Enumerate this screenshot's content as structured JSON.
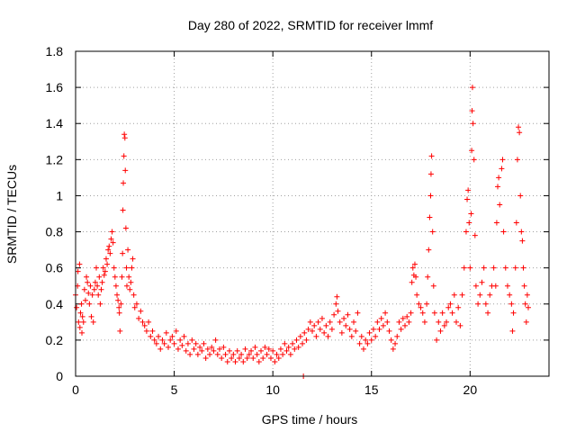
{
  "chart_data": {
    "type": "scatter",
    "title": "Day 280 of 2022, SRMTID for receiver lmmf",
    "xlabel": "GPS time / hours",
    "ylabel": "SRMTID / TECUs",
    "xlim": [
      0,
      24
    ],
    "ylim": [
      0,
      1.8
    ],
    "xticks": [
      0,
      5,
      10,
      15,
      20
    ],
    "xtick_labels": [
      "0",
      "5",
      "10",
      "15",
      "20"
    ],
    "yticks": [
      0,
      0.2,
      0.4,
      0.6,
      0.8,
      1.0,
      1.2,
      1.4,
      1.6,
      1.8
    ],
    "ytick_labels": [
      "0",
      "0.2",
      "0.4",
      "0.6",
      "0.8",
      "1",
      "1.2",
      "1.4",
      "1.6",
      "1.8"
    ],
    "grid": true,
    "marker": "+",
    "color": "#ff0000",
    "series": [
      {
        "name": "SRMTID",
        "points": [
          [
            0.0,
            0.45
          ],
          [
            0.05,
            0.38
          ],
          [
            0.1,
            0.5
          ],
          [
            0.12,
            0.58
          ],
          [
            0.15,
            0.3
          ],
          [
            0.2,
            0.62
          ],
          [
            0.22,
            0.27
          ],
          [
            0.25,
            0.35
          ],
          [
            0.3,
            0.4
          ],
          [
            0.32,
            0.24
          ],
          [
            0.35,
            0.33
          ],
          [
            0.4,
            0.3
          ],
          [
            0.45,
            0.48
          ],
          [
            0.5,
            0.42
          ],
          [
            0.55,
            0.55
          ],
          [
            0.6,
            0.52
          ],
          [
            0.65,
            0.46
          ],
          [
            0.7,
            0.4
          ],
          [
            0.75,
            0.5
          ],
          [
            0.8,
            0.33
          ],
          [
            0.85,
            0.45
          ],
          [
            0.9,
            0.3
          ],
          [
            0.95,
            0.48
          ],
          [
            1.0,
            0.52
          ],
          [
            1.05,
            0.6
          ],
          [
            1.1,
            0.5
          ],
          [
            1.15,
            0.45
          ],
          [
            1.2,
            0.55
          ],
          [
            1.25,
            0.4
          ],
          [
            1.3,
            0.48
          ],
          [
            1.35,
            0.52
          ],
          [
            1.4,
            0.6
          ],
          [
            1.45,
            0.56
          ],
          [
            1.5,
            0.58
          ],
          [
            1.55,
            0.65
          ],
          [
            1.6,
            0.62
          ],
          [
            1.65,
            0.7
          ],
          [
            1.7,
            0.72
          ],
          [
            1.75,
            0.68
          ],
          [
            1.8,
            0.76
          ],
          [
            1.85,
            0.8
          ],
          [
            1.9,
            0.74
          ],
          [
            1.95,
            0.6
          ],
          [
            2.0,
            0.55
          ],
          [
            2.05,
            0.5
          ],
          [
            2.1,
            0.45
          ],
          [
            2.15,
            0.42
          ],
          [
            2.2,
            0.38
          ],
          [
            2.22,
            0.35
          ],
          [
            2.25,
            0.25
          ],
          [
            2.3,
            0.4
          ],
          [
            2.35,
            0.55
          ],
          [
            2.38,
            0.68
          ],
          [
            2.4,
            0.92
          ],
          [
            2.42,
            1.07
          ],
          [
            2.45,
            1.22
          ],
          [
            2.47,
            1.34
          ],
          [
            2.5,
            1.32
          ],
          [
            2.52,
            1.14
          ],
          [
            2.55,
            0.82
          ],
          [
            2.58,
            0.6
          ],
          [
            2.6,
            0.5
          ],
          [
            2.65,
            0.7
          ],
          [
            2.7,
            0.55
          ],
          [
            2.75,
            0.48
          ],
          [
            2.8,
            0.52
          ],
          [
            2.85,
            0.6
          ],
          [
            2.9,
            0.65
          ],
          [
            2.95,
            0.45
          ],
          [
            3.0,
            0.38
          ],
          [
            3.1,
            0.4
          ],
          [
            3.2,
            0.32
          ],
          [
            3.3,
            0.36
          ],
          [
            3.4,
            0.3
          ],
          [
            3.5,
            0.28
          ],
          [
            3.6,
            0.25
          ],
          [
            3.7,
            0.3
          ],
          [
            3.8,
            0.22
          ],
          [
            3.9,
            0.25
          ],
          [
            4.0,
            0.2
          ],
          [
            4.1,
            0.18
          ],
          [
            4.2,
            0.22
          ],
          [
            4.3,
            0.15
          ],
          [
            4.4,
            0.2
          ],
          [
            4.5,
            0.18
          ],
          [
            4.6,
            0.24
          ],
          [
            4.7,
            0.16
          ],
          [
            4.8,
            0.2
          ],
          [
            4.9,
            0.22
          ],
          [
            5.0,
            0.18
          ],
          [
            5.1,
            0.25
          ],
          [
            5.2,
            0.15
          ],
          [
            5.3,
            0.2
          ],
          [
            5.4,
            0.17
          ],
          [
            5.5,
            0.22
          ],
          [
            5.6,
            0.14
          ],
          [
            5.7,
            0.18
          ],
          [
            5.8,
            0.12
          ],
          [
            5.9,
            0.2
          ],
          [
            6.0,
            0.15
          ],
          [
            6.1,
            0.18
          ],
          [
            6.2,
            0.12
          ],
          [
            6.3,
            0.16
          ],
          [
            6.4,
            0.14
          ],
          [
            6.5,
            0.18
          ],
          [
            6.6,
            0.1
          ],
          [
            6.7,
            0.15
          ],
          [
            6.8,
            0.12
          ],
          [
            6.9,
            0.16
          ],
          [
            7.0,
            0.14
          ],
          [
            7.1,
            0.2
          ],
          [
            7.2,
            0.12
          ],
          [
            7.3,
            0.15
          ],
          [
            7.4,
            0.1
          ],
          [
            7.5,
            0.16
          ],
          [
            7.6,
            0.12
          ],
          [
            7.7,
            0.08
          ],
          [
            7.8,
            0.14
          ],
          [
            7.9,
            0.1
          ],
          [
            8.0,
            0.12
          ],
          [
            8.1,
            0.08
          ],
          [
            8.2,
            0.14
          ],
          [
            8.3,
            0.1
          ],
          [
            8.4,
            0.12
          ],
          [
            8.5,
            0.08
          ],
          [
            8.6,
            0.15
          ],
          [
            8.7,
            0.1
          ],
          [
            8.8,
            0.12
          ],
          [
            8.9,
            0.14
          ],
          [
            9.0,
            0.1
          ],
          [
            9.1,
            0.16
          ],
          [
            9.2,
            0.12
          ],
          [
            9.3,
            0.08
          ],
          [
            9.4,
            0.14
          ],
          [
            9.5,
            0.1
          ],
          [
            9.6,
            0.16
          ],
          [
            9.7,
            0.12
          ],
          [
            9.8,
            0.15
          ],
          [
            9.9,
            0.1
          ],
          [
            10.0,
            0.14
          ],
          [
            10.1,
            0.08
          ],
          [
            10.2,
            0.12
          ],
          [
            10.3,
            0.1
          ],
          [
            10.4,
            0.15
          ],
          [
            10.5,
            0.12
          ],
          [
            10.6,
            0.18
          ],
          [
            10.7,
            0.14
          ],
          [
            10.8,
            0.16
          ],
          [
            10.9,
            0.12
          ],
          [
            11.0,
            0.18
          ],
          [
            11.1,
            0.15
          ],
          [
            11.2,
            0.2
          ],
          [
            11.3,
            0.16
          ],
          [
            11.4,
            0.22
          ],
          [
            11.5,
            0.18
          ],
          [
            11.55,
            0.0
          ],
          [
            11.6,
            0.24
          ],
          [
            11.7,
            0.2
          ],
          [
            11.8,
            0.26
          ],
          [
            11.9,
            0.3
          ],
          [
            12.0,
            0.25
          ],
          [
            12.1,
            0.28
          ],
          [
            12.2,
            0.22
          ],
          [
            12.3,
            0.3
          ],
          [
            12.4,
            0.26
          ],
          [
            12.5,
            0.32
          ],
          [
            12.6,
            0.24
          ],
          [
            12.7,
            0.28
          ],
          [
            12.8,
            0.22
          ],
          [
            12.9,
            0.3
          ],
          [
            13.0,
            0.26
          ],
          [
            13.1,
            0.34
          ],
          [
            13.2,
            0.4
          ],
          [
            13.25,
            0.44
          ],
          [
            13.3,
            0.36
          ],
          [
            13.4,
            0.3
          ],
          [
            13.5,
            0.24
          ],
          [
            13.6,
            0.32
          ],
          [
            13.7,
            0.28
          ],
          [
            13.8,
            0.34
          ],
          [
            13.9,
            0.26
          ],
          [
            14.0,
            0.22
          ],
          [
            14.1,
            0.3
          ],
          [
            14.2,
            0.25
          ],
          [
            14.3,
            0.35
          ],
          [
            14.4,
            0.18
          ],
          [
            14.5,
            0.22
          ],
          [
            14.6,
            0.15
          ],
          [
            14.7,
            0.2
          ],
          [
            14.8,
            0.18
          ],
          [
            14.9,
            0.24
          ],
          [
            15.0,
            0.2
          ],
          [
            15.1,
            0.26
          ],
          [
            15.2,
            0.22
          ],
          [
            15.3,
            0.3
          ],
          [
            15.4,
            0.26
          ],
          [
            15.5,
            0.32
          ],
          [
            15.6,
            0.28
          ],
          [
            15.7,
            0.35
          ],
          [
            15.8,
            0.3
          ],
          [
            15.9,
            0.25
          ],
          [
            16.0,
            0.2
          ],
          [
            16.1,
            0.15
          ],
          [
            16.2,
            0.18
          ],
          [
            16.3,
            0.22
          ],
          [
            16.4,
            0.3
          ],
          [
            16.5,
            0.26
          ],
          [
            16.6,
            0.32
          ],
          [
            16.7,
            0.28
          ],
          [
            16.8,
            0.33
          ],
          [
            16.9,
            0.3
          ],
          [
            17.0,
            0.35
          ],
          [
            17.05,
            0.52
          ],
          [
            17.1,
            0.6
          ],
          [
            17.15,
            0.56
          ],
          [
            17.2,
            0.62
          ],
          [
            17.25,
            0.55
          ],
          [
            17.3,
            0.45
          ],
          [
            17.4,
            0.4
          ],
          [
            17.5,
            0.38
          ],
          [
            17.6,
            0.35
          ],
          [
            17.7,
            0.3
          ],
          [
            17.8,
            0.4
          ],
          [
            17.85,
            0.55
          ],
          [
            17.9,
            0.7
          ],
          [
            17.95,
            0.88
          ],
          [
            18.0,
            1.0
          ],
          [
            18.02,
            1.12
          ],
          [
            18.05,
            1.22
          ],
          [
            18.1,
            0.8
          ],
          [
            18.15,
            0.5
          ],
          [
            18.2,
            0.35
          ],
          [
            18.3,
            0.2
          ],
          [
            18.4,
            0.3
          ],
          [
            18.5,
            0.25
          ],
          [
            18.6,
            0.35
          ],
          [
            18.7,
            0.28
          ],
          [
            18.8,
            0.3
          ],
          [
            18.9,
            0.38
          ],
          [
            19.0,
            0.4
          ],
          [
            19.1,
            0.35
          ],
          [
            19.2,
            0.45
          ],
          [
            19.3,
            0.3
          ],
          [
            19.4,
            0.38
          ],
          [
            19.5,
            0.28
          ],
          [
            19.6,
            0.45
          ],
          [
            19.7,
            0.6
          ],
          [
            19.8,
            0.8
          ],
          [
            19.85,
            0.98
          ],
          [
            19.9,
            1.03
          ],
          [
            19.95,
            0.85
          ],
          [
            20.0,
            0.6
          ],
          [
            20.05,
            0.9
          ],
          [
            20.08,
            1.25
          ],
          [
            20.1,
            1.47
          ],
          [
            20.12,
            1.6
          ],
          [
            20.15,
            1.4
          ],
          [
            20.2,
            1.2
          ],
          [
            20.25,
            0.78
          ],
          [
            20.3,
            0.5
          ],
          [
            20.4,
            0.4
          ],
          [
            20.5,
            0.45
          ],
          [
            20.6,
            0.52
          ],
          [
            20.7,
            0.6
          ],
          [
            20.8,
            0.4
          ],
          [
            20.9,
            0.35
          ],
          [
            21.0,
            0.45
          ],
          [
            21.1,
            0.5
          ],
          [
            21.2,
            0.6
          ],
          [
            21.3,
            0.5
          ],
          [
            21.35,
            0.85
          ],
          [
            21.4,
            1.05
          ],
          [
            21.45,
            1.1
          ],
          [
            21.5,
            0.95
          ],
          [
            21.6,
            1.15
          ],
          [
            21.65,
            1.2
          ],
          [
            21.7,
            0.8
          ],
          [
            21.8,
            0.6
          ],
          [
            21.9,
            0.5
          ],
          [
            22.0,
            0.45
          ],
          [
            22.1,
            0.4
          ],
          [
            22.15,
            0.25
          ],
          [
            22.2,
            0.35
          ],
          [
            22.3,
            0.6
          ],
          [
            22.35,
            0.85
          ],
          [
            22.4,
            1.2
          ],
          [
            22.45,
            1.38
          ],
          [
            22.5,
            1.35
          ],
          [
            22.55,
            1.0
          ],
          [
            22.6,
            0.8
          ],
          [
            22.65,
            0.75
          ],
          [
            22.7,
            0.6
          ],
          [
            22.75,
            0.5
          ],
          [
            22.8,
            0.4
          ],
          [
            22.85,
            0.3
          ],
          [
            22.9,
            0.45
          ],
          [
            22.95,
            0.38
          ]
        ]
      }
    ]
  }
}
